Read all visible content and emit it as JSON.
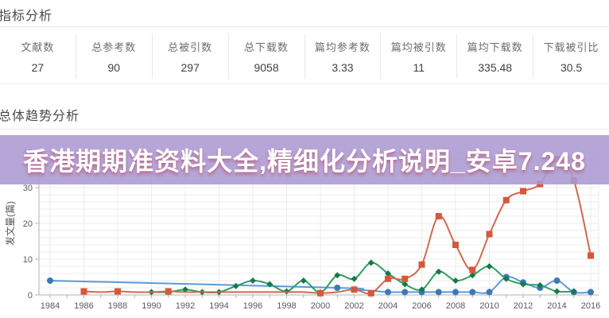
{
  "metrics_section": {
    "title": "指标分析",
    "items": [
      {
        "label": "文献数",
        "value": "27"
      },
      {
        "label": "总参考数",
        "value": "90"
      },
      {
        "label": "总被引数",
        "value": "297"
      },
      {
        "label": "总下载数",
        "value": "9058"
      },
      {
        "label": "篇均参考数",
        "value": "3.33"
      },
      {
        "label": "篇均被引数",
        "value": "11"
      },
      {
        "label": "篇均下载数",
        "value": "335.48"
      },
      {
        "label": "下载被引比",
        "value": "30.5"
      }
    ]
  },
  "trend_section": {
    "title": "总体趋势分析",
    "banner": {
      "text": "香港期期准资料大全,精细化分析说明_安卓7.248",
      "bg_color": "rgba(172,154,211,0.88)",
      "text_color": "#ffffff"
    }
  },
  "chart_data": {
    "type": "line",
    "smooth": true,
    "ylabel": "发文量(篇)",
    "xlabel": "",
    "ylim": [
      0,
      40
    ],
    "y_ticks": [
      0,
      10,
      20,
      30,
      40
    ],
    "y_minor_step": 2,
    "x_range": [
      1984,
      2016
    ],
    "x_tick_labels": [
      "1984",
      "1986",
      "1988",
      "1990",
      "1992",
      "1994",
      "1996",
      "1998",
      "2000",
      "2002",
      "2004",
      "2006",
      "2008",
      "2010",
      "2012",
      "2014",
      "2016"
    ],
    "grid": true,
    "legend": "none",
    "axis_color": "#b3b3b3",
    "grid_color": "#ececec",
    "tick_label_color": "#5a5a5a",
    "series": [
      {
        "name": "blue",
        "line_color": "#5b9bd5",
        "marker_color": "#3d7ab5",
        "marker": "circle",
        "points": [
          [
            1984,
            4
          ],
          [
            2001,
            2
          ],
          [
            2002,
            1.5
          ],
          [
            2003,
            1.2
          ],
          [
            2004,
            0.8
          ],
          [
            2005,
            0.8
          ],
          [
            2006,
            0.8
          ],
          [
            2007,
            0.8
          ],
          [
            2008,
            0.8
          ],
          [
            2009,
            0.8
          ],
          [
            2010,
            0.8
          ],
          [
            2011,
            5
          ],
          [
            2012,
            3.5
          ],
          [
            2013,
            2
          ],
          [
            2014,
            4
          ],
          [
            2015,
            0.8
          ],
          [
            2016,
            0.8
          ]
        ],
        "marker_years": [
          1984,
          2001,
          2004,
          2005,
          2006,
          2007,
          2008,
          2009,
          2010,
          2011,
          2012,
          2013,
          2014,
          2015,
          2016
        ]
      },
      {
        "name": "green",
        "line_color": "#31a05f",
        "marker_color": "#17794c",
        "marker": "diamond",
        "points": [
          [
            1990,
            0.8
          ],
          [
            1991,
            0.8
          ],
          [
            1992,
            1.5
          ],
          [
            1993,
            0.8
          ],
          [
            1994,
            0.8
          ],
          [
            1995,
            2.5
          ],
          [
            1996,
            4
          ],
          [
            1997,
            3
          ],
          [
            1998,
            1
          ],
          [
            1999,
            4
          ],
          [
            2000,
            0.7
          ],
          [
            2001,
            5.5
          ],
          [
            2002,
            4.5
          ],
          [
            2003,
            9
          ],
          [
            2004,
            6
          ],
          [
            2005,
            3
          ],
          [
            2006,
            1.5
          ],
          [
            2007,
            6.5
          ],
          [
            2008,
            4
          ],
          [
            2009,
            5.5
          ],
          [
            2010,
            8
          ],
          [
            2011,
            4.5
          ],
          [
            2012,
            3
          ],
          [
            2013,
            2.7
          ],
          [
            2014,
            1
          ],
          [
            2015,
            1
          ]
        ],
        "marker_years": [
          1990,
          1991,
          1992,
          1993,
          1994,
          1995,
          1996,
          1997,
          1998,
          1999,
          2000,
          2001,
          2002,
          2003,
          2004,
          2005,
          2006,
          2007,
          2008,
          2009,
          2010,
          2011,
          2012,
          2013,
          2014,
          2015
        ]
      },
      {
        "name": "orange",
        "line_color": "#cf6a4e",
        "marker_color": "#d7573b",
        "marker": "square",
        "points": [
          [
            1986,
            1
          ],
          [
            1987,
            0.8
          ],
          [
            1988,
            1
          ],
          [
            1989,
            0.8
          ],
          [
            1990,
            0.8
          ],
          [
            1991,
            1
          ],
          [
            1992,
            0.8
          ],
          [
            1993,
            0.8
          ],
          [
            1994,
            0.8
          ],
          [
            1995,
            0.8
          ],
          [
            1996,
            0.8
          ],
          [
            1997,
            0.8
          ],
          [
            1998,
            0.8
          ],
          [
            1999,
            0.8
          ],
          [
            2000,
            0.5
          ],
          [
            2001,
            0.8
          ],
          [
            2002,
            1.5
          ],
          [
            2003,
            0.5
          ],
          [
            2004,
            4.5
          ],
          [
            2005,
            4.5
          ],
          [
            2006,
            8.5
          ],
          [
            2007,
            22
          ],
          [
            2008,
            14
          ],
          [
            2009,
            7
          ],
          [
            2010,
            17
          ],
          [
            2011,
            26.5
          ],
          [
            2012,
            29
          ],
          [
            2013,
            31
          ],
          [
            2014,
            38
          ],
          [
            2015,
            32
          ],
          [
            2016,
            11
          ]
        ],
        "marker_years": [
          1986,
          1988,
          1991,
          2000,
          2002,
          2003,
          2004,
          2005,
          2006,
          2007,
          2008,
          2009,
          2010,
          2011,
          2012,
          2013,
          2014,
          2015,
          2016
        ]
      }
    ]
  }
}
